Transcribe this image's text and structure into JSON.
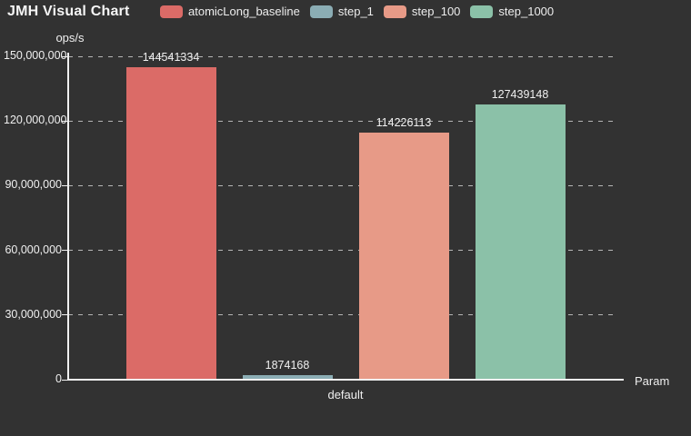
{
  "title": "JMH Visual Chart",
  "legend": [
    {
      "label": "atomicLong_baseline",
      "color": "#db6b67"
    },
    {
      "label": "step_1",
      "color": "#8badb4"
    },
    {
      "label": "step_100",
      "color": "#e79a87"
    },
    {
      "label": "step_1000",
      "color": "#8bc1a8"
    }
  ],
  "chart_data": {
    "type": "bar",
    "title": "JMH Visual Chart",
    "ylabel": "ops/s",
    "xlabel": "Param",
    "categories": [
      "default"
    ],
    "series": [
      {
        "name": "atomicLong_baseline",
        "color": "#db6b67",
        "values": [
          144541334
        ]
      },
      {
        "name": "step_1",
        "color": "#8badb4",
        "values": [
          1874168
        ]
      },
      {
        "name": "step_100",
        "color": "#e79a87",
        "values": [
          114226113
        ]
      },
      {
        "name": "step_1000",
        "color": "#8bc1a8",
        "values": [
          127439148
        ]
      }
    ],
    "value_labels": [
      "144541334",
      "1874168",
      "114226113",
      "127439148"
    ],
    "ylim": [
      0,
      150000000
    ],
    "yticks": [
      0,
      30000000,
      60000000,
      90000000,
      120000000,
      150000000
    ],
    "ytick_labels": [
      "0",
      "30,000,000",
      "60,000,000",
      "90,000,000",
      "120,000,000",
      "150,000,000"
    ],
    "grid": true,
    "legend_position": "top"
  },
  "colors": {
    "background": "#323232",
    "axis": "#f0f0f0",
    "grid": "#cccccc",
    "text": "#f0f0f0"
  }
}
